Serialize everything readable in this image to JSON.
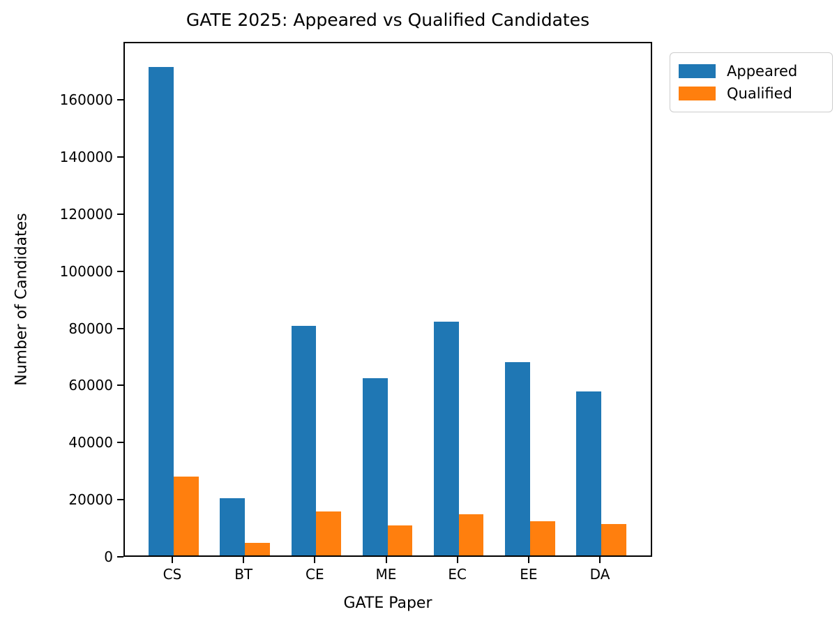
{
  "chart_data": {
    "type": "bar",
    "title": "GATE 2025: Appeared vs Qualified Candidates",
    "xlabel": "GATE Paper",
    "ylabel": "Number of Candidates",
    "categories": [
      "CS",
      "BT",
      "CE",
      "ME",
      "EC",
      "EE",
      "DA"
    ],
    "series": [
      {
        "name": "Appeared",
        "color": "#1f77b4",
        "values": [
          171000,
          20000,
          80500,
          62000,
          81800,
          67800,
          57500
        ]
      },
      {
        "name": "Qualified",
        "color": "#ff7f0e",
        "values": [
          27500,
          4500,
          15300,
          10400,
          14400,
          12100,
          11000
        ]
      }
    ],
    "yticks": [
      0,
      20000,
      40000,
      60000,
      80000,
      100000,
      120000,
      140000,
      160000
    ],
    "ylim": [
      0,
      180350
    ],
    "grid": false,
    "legend_position": "upper-right-outside",
    "background": "#ffffff",
    "axis_color": "#000000"
  }
}
